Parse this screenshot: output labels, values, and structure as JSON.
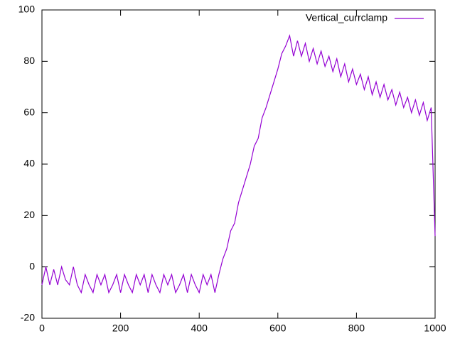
{
  "chart_data": {
    "type": "line",
    "x": [
      0,
      10,
      20,
      30,
      40,
      50,
      60,
      70,
      80,
      90,
      100,
      110,
      120,
      130,
      140,
      150,
      160,
      170,
      180,
      190,
      200,
      210,
      220,
      230,
      240,
      250,
      260,
      270,
      280,
      290,
      300,
      310,
      320,
      330,
      340,
      350,
      360,
      370,
      380,
      390,
      400,
      410,
      420,
      430,
      440,
      450,
      460,
      470,
      480,
      490,
      500,
      510,
      520,
      530,
      540,
      550,
      560,
      570,
      580,
      590,
      600,
      610,
      620,
      630,
      640,
      650,
      660,
      670,
      680,
      690,
      700,
      710,
      720,
      730,
      740,
      750,
      760,
      770,
      780,
      790,
      800,
      810,
      820,
      830,
      840,
      850,
      860,
      870,
      880,
      890,
      900,
      910,
      920,
      930,
      940,
      950,
      960,
      970,
      980,
      990,
      1000
    ],
    "series": [
      {
        "name": "Vertical_currclamp",
        "color": "#9400d3",
        "values": [
          -7,
          0,
          -7,
          -1,
          -7,
          0,
          -5,
          -7,
          0,
          -7,
          -10,
          -3,
          -7,
          -10,
          -3,
          -7,
          -3,
          -10,
          -7,
          -3,
          -10,
          -3,
          -7,
          -10,
          -3,
          -7,
          -3,
          -10,
          -3,
          -7,
          -10,
          -3,
          -7,
          -3,
          -10,
          -7,
          -3,
          -10,
          -3,
          -7,
          -10,
          -3,
          -7,
          -3,
          -10,
          -3,
          3,
          7,
          14,
          17,
          25,
          30,
          35,
          40,
          47,
          50,
          58,
          62,
          67,
          72,
          77,
          83,
          86,
          90,
          82,
          88,
          82,
          87,
          80,
          85,
          79,
          84,
          78,
          82,
          76,
          81,
          74,
          79,
          72,
          77,
          71,
          75,
          69,
          74,
          67,
          72,
          66,
          71,
          65,
          69,
          63,
          68,
          62,
          66,
          60,
          65,
          59,
          64,
          57,
          62,
          12
        ]
      }
    ],
    "xlim": [
      0,
      1000
    ],
    "xticks": [
      0,
      200,
      400,
      600,
      800,
      1000
    ],
    "ylim": [
      -20,
      100
    ],
    "yticks": [
      -20,
      0,
      20,
      40,
      60,
      80,
      100
    ],
    "legend": "top-right"
  }
}
